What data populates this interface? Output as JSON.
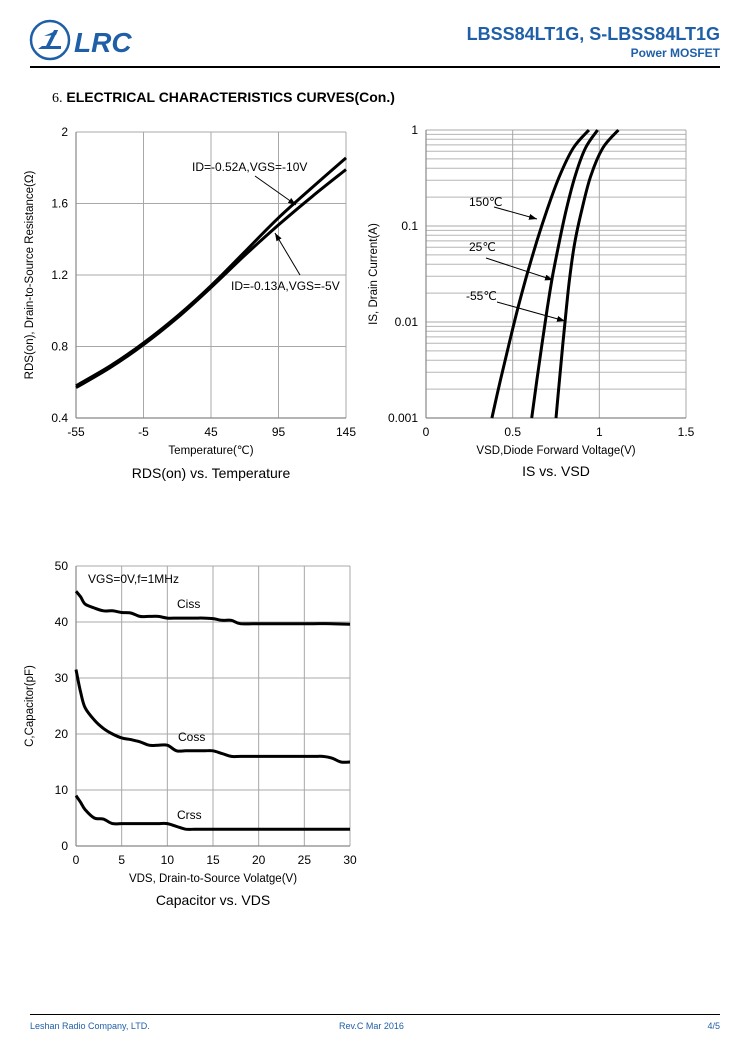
{
  "header": {
    "logo_text": "LRC",
    "title": "LBSS84LT1G, S-LBSS84LT1G",
    "subtitle": "Power MOSFET",
    "brand_color": "#1f5fa8"
  },
  "section": {
    "number": "6.",
    "title": "ELECTRICAL CHARACTERISTICS CURVES(Con.)"
  },
  "footer": {
    "company": "Leshan Radio Company, LTD.",
    "revision": "Rev.C   Mar 2016",
    "page": "4/5"
  },
  "chart_data": [
    {
      "id": "rds-temp",
      "type": "line",
      "title": "RDS(on) vs. Temperature",
      "xlabel": "Temperature(℃)",
      "ylabel": "RDS(on), Drain-to-Source Resistance(Ω)",
      "xlim": [
        -55,
        145
      ],
      "ylim": [
        0.4,
        2
      ],
      "x_scale": "linear",
      "y_scale": "linear",
      "xticks": [
        -55,
        -5,
        45,
        95,
        145
      ],
      "xtick_labels": [
        "-55",
        "-5",
        "45",
        "95",
        "145"
      ],
      "yticks": [
        0.4,
        0.8,
        1.2,
        1.6,
        2
      ],
      "ytick_labels": [
        "0.4",
        "0.8",
        "1.2",
        "1.6",
        "2"
      ],
      "grid": true,
      "series": [
        {
          "name": "ID=-0.52A,VGS=-10V",
          "x": [
            -55,
            -30,
            -5,
            20,
            45,
            70,
            95,
            120,
            145
          ],
          "y": [
            0.58,
            0.69,
            0.82,
            0.97,
            1.14,
            1.33,
            1.52,
            1.69,
            1.855
          ]
        },
        {
          "name": "ID=-0.13A,VGS=-5V",
          "x": [
            -55,
            -30,
            -5,
            20,
            45,
            70,
            95,
            120,
            145
          ],
          "y": [
            0.57,
            0.68,
            0.81,
            0.96,
            1.13,
            1.31,
            1.48,
            1.64,
            1.79
          ]
        }
      ],
      "annotations": [
        {
          "text": "ID=-0.52A,VGS=-10V",
          "target_series": 0
        },
        {
          "text": "ID=-0.13A,VGS=-5V",
          "target_series": 1
        }
      ]
    },
    {
      "id": "is-vsd",
      "type": "line",
      "title": "IS vs. VSD",
      "xlabel": "VSD,Diode Forward Voltage(V)",
      "ylabel": "IS, Drain Current(A)",
      "xlim": [
        0,
        1.5
      ],
      "ylim": [
        0.001,
        1
      ],
      "x_scale": "linear",
      "y_scale": "log",
      "xticks": [
        0,
        0.5,
        1,
        1.5
      ],
      "xtick_labels": [
        "0",
        "0.5",
        "1",
        "1.5"
      ],
      "yticks": [
        0.001,
        0.01,
        0.1,
        1
      ],
      "ytick_labels": [
        "0.001",
        "0.01",
        "0.1",
        "1"
      ],
      "grid": true,
      "series": [
        {
          "name": "150℃",
          "x": [
            0.38,
            0.43,
            0.48,
            0.53,
            0.58,
            0.64,
            0.7,
            0.77,
            0.85,
            0.94
          ],
          "y": [
            0.001,
            0.0025,
            0.006,
            0.014,
            0.03,
            0.07,
            0.15,
            0.33,
            0.65,
            1
          ]
        },
        {
          "name": "25℃",
          "x": [
            0.61,
            0.64,
            0.67,
            0.7,
            0.73,
            0.77,
            0.81,
            0.86,
            0.92,
            0.99
          ],
          "y": [
            0.001,
            0.0025,
            0.006,
            0.014,
            0.03,
            0.07,
            0.15,
            0.33,
            0.65,
            1
          ]
        },
        {
          "name": "-55℃",
          "x": [
            0.75,
            0.77,
            0.79,
            0.81,
            0.83,
            0.86,
            0.9,
            0.95,
            1.02,
            1.11
          ],
          "y": [
            0.001,
            0.0025,
            0.006,
            0.014,
            0.03,
            0.07,
            0.15,
            0.33,
            0.65,
            1
          ]
        }
      ],
      "annotations": [
        {
          "text": "150℃",
          "target_series": 0
        },
        {
          "text": "25℃",
          "target_series": 1
        },
        {
          "text": "-55℃",
          "target_series": 2
        }
      ]
    },
    {
      "id": "cap-vds",
      "type": "line",
      "title": "Capacitor vs.  VDS",
      "xlabel": "VDS, Drain-to-Source Volatge(V)",
      "ylabel": "C,Capacitor(pF)",
      "xlim": [
        0,
        30
      ],
      "ylim": [
        0,
        50
      ],
      "x_scale": "linear",
      "y_scale": "linear",
      "xticks": [
        0,
        5,
        10,
        15,
        20,
        25,
        30
      ],
      "xtick_labels": [
        "0",
        "5",
        "10",
        "15",
        "20",
        "25",
        "30"
      ],
      "yticks": [
        0,
        10,
        20,
        30,
        40,
        50
      ],
      "ytick_labels": [
        "0",
        "10",
        "20",
        "30",
        "40",
        "50"
      ],
      "grid": true,
      "condition": "VGS=0V,f=1MHz",
      "series": [
        {
          "name": "Ciss",
          "x": [
            0,
            0.5,
            1,
            2,
            3,
            4,
            5,
            6,
            7,
            8,
            9,
            10,
            11,
            12,
            13,
            14,
            15,
            16,
            17,
            18,
            20,
            22,
            24,
            26,
            28,
            30
          ],
          "y": [
            45.5,
            44.5,
            43.2,
            42.5,
            42.0,
            42.0,
            41.7,
            41.6,
            41.0,
            41.0,
            41.0,
            40.7,
            40.7,
            40.7,
            40.7,
            40.7,
            40.6,
            40.3,
            40.3,
            39.7,
            39.7,
            39.7,
            39.7,
            39.7,
            39.7,
            39.6
          ]
        },
        {
          "name": "Coss",
          "x": [
            0,
            0.5,
            1,
            2,
            3,
            4,
            5,
            6,
            7,
            8,
            9,
            10,
            11,
            12,
            13,
            14,
            15,
            16,
            17,
            18,
            20,
            22,
            24,
            26,
            27,
            28,
            29,
            30
          ],
          "y": [
            31.5,
            27.5,
            24.7,
            22.5,
            21.0,
            20.0,
            19.3,
            19.0,
            18.6,
            18.0,
            18.0,
            18.0,
            17.0,
            17.0,
            17.0,
            17.0,
            17.0,
            16.5,
            16.0,
            16.0,
            16.0,
            16.0,
            16.0,
            16.0,
            16.0,
            15.7,
            15.0,
            15.0
          ]
        },
        {
          "name": "Crss",
          "x": [
            0,
            0.5,
            1,
            2,
            3,
            4,
            5,
            6,
            7,
            8,
            9,
            10,
            11,
            12,
            13,
            14,
            15,
            20,
            25,
            30
          ],
          "y": [
            9.0,
            7.8,
            6.5,
            5.0,
            4.8,
            4.0,
            4.0,
            4.0,
            4.0,
            4.0,
            4.0,
            4.0,
            3.5,
            3.0,
            3.0,
            3.0,
            3.0,
            3.0,
            3.0,
            3.0
          ]
        }
      ],
      "annotations": [
        {
          "text": "Ciss",
          "target_series": 0
        },
        {
          "text": "Coss",
          "target_series": 1
        },
        {
          "text": "Crss",
          "target_series": 2
        }
      ]
    }
  ]
}
